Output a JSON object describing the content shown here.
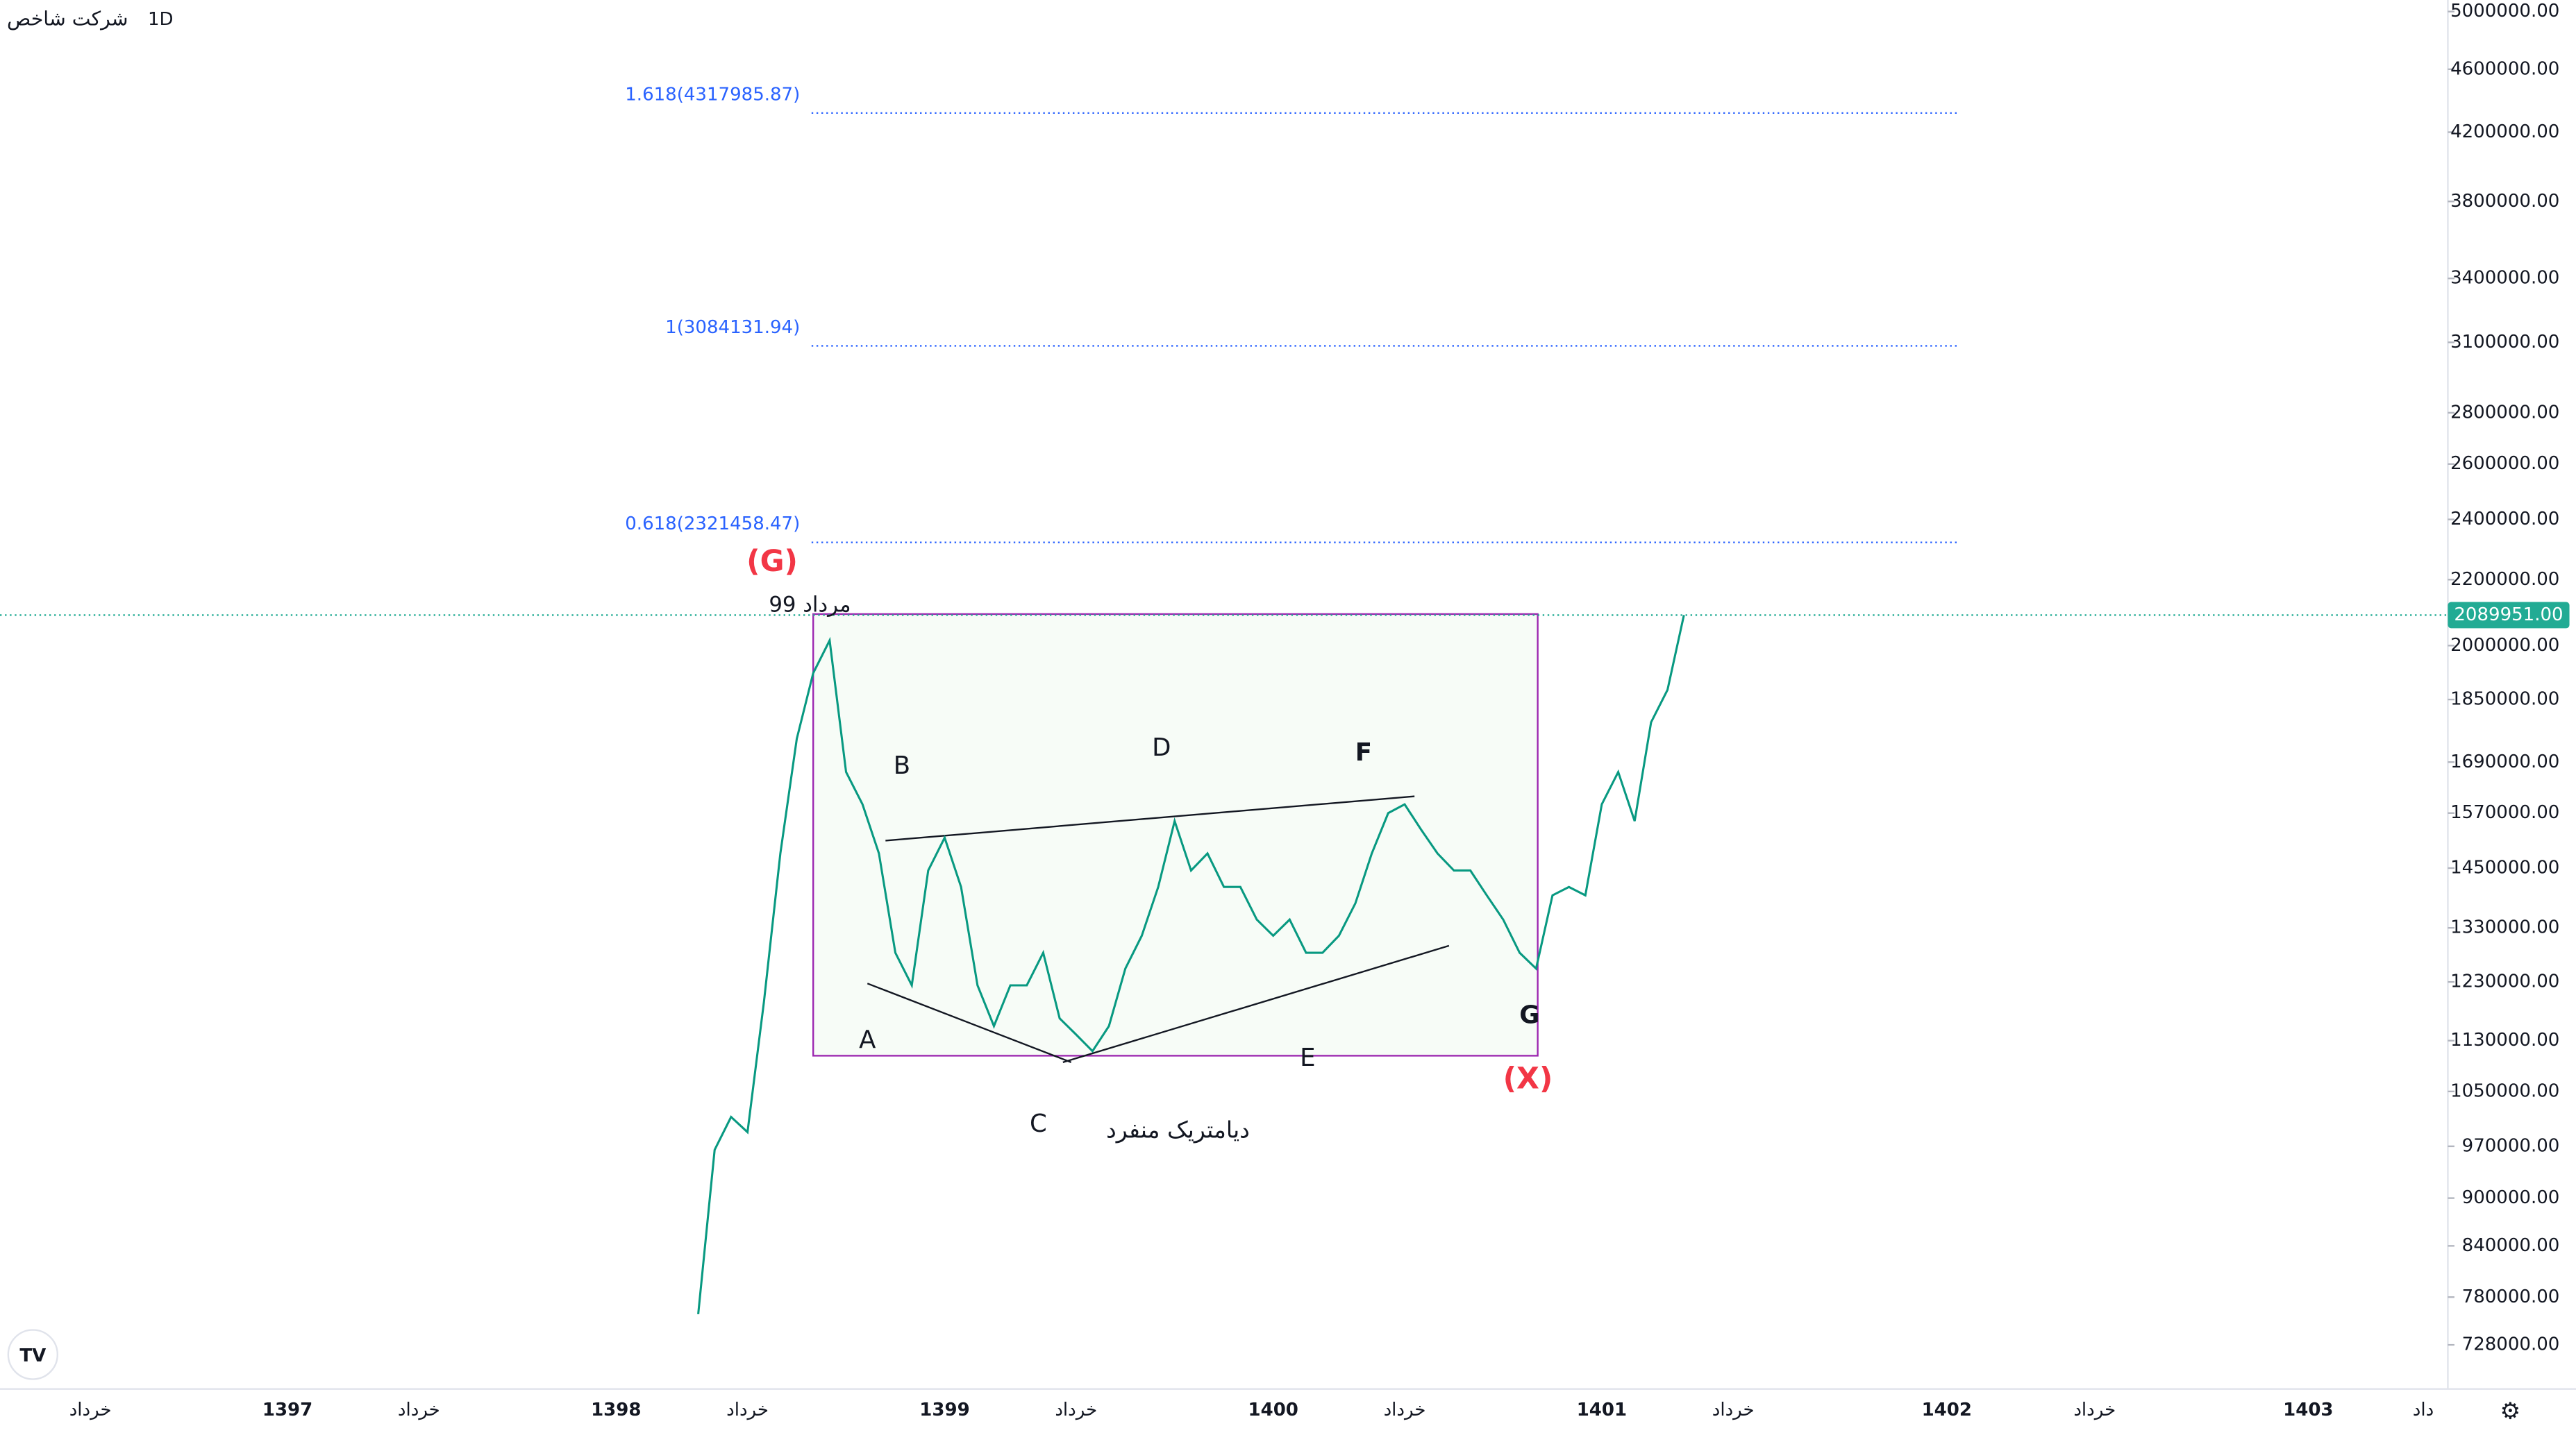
{
  "header": {
    "title": "شرکت شاخص",
    "interval": "1D"
  },
  "chart_data": {
    "type": "line",
    "log_scale": true,
    "color": "#089981",
    "categories": [
      null,
      null,
      null,
      null,
      null,
      "خرداد",
      null,
      null,
      null,
      null,
      null,
      null,
      null,
      null,
      null,
      null,
      null,
      "1397",
      null,
      null,
      null,
      null,
      null,
      null,
      null,
      "خرداد",
      null,
      null,
      null,
      null,
      null,
      null,
      null,
      null,
      null,
      null,
      null,
      "1398",
      null,
      null,
      null,
      null,
      null,
      null,
      null,
      "خرداد",
      null,
      null,
      null,
      null,
      null,
      null,
      null,
      null,
      null,
      null,
      null,
      "1399",
      null,
      null,
      null,
      null,
      null,
      null,
      null,
      "خرداد",
      null,
      null,
      null,
      null,
      null,
      null,
      null,
      null,
      null,
      null,
      null,
      "1400",
      null,
      null,
      null,
      null,
      null,
      null,
      null,
      "خرداد",
      null,
      null,
      null,
      null,
      null,
      null,
      null,
      null,
      null,
      null,
      null,
      "1401",
      null,
      null,
      null,
      null,
      null,
      null,
      null,
      "خرداد",
      null,
      null,
      null,
      null,
      null,
      null,
      null,
      null,
      null,
      null,
      null,
      null,
      "1402",
      null,
      null,
      null,
      null,
      null,
      null,
      null,
      null,
      "خرداد",
      null,
      null,
      null,
      null,
      null,
      null,
      null,
      null,
      null,
      null,
      null,
      null,
      "1403",
      null,
      null,
      null,
      null,
      null,
      null,
      "داد",
      null
    ],
    "values": [
      null,
      null,
      null,
      null,
      null,
      null,
      null,
      null,
      null,
      null,
      null,
      null,
      null,
      null,
      null,
      null,
      null,
      null,
      null,
      null,
      null,
      null,
      null,
      null,
      null,
      null,
      null,
      null,
      null,
      null,
      null,
      null,
      null,
      null,
      null,
      null,
      null,
      null,
      null,
      null,
      null,
      null,
      761000,
      965000,
      1012000,
      990000,
      1195000,
      1481000,
      1748000,
      1922000,
      2015000,
      1666000,
      1590000,
      1481000,
      1283000,
      1224000,
      1445000,
      1515000,
      1411000,
      1224000,
      1154000,
      1224000,
      1224000,
      1283000,
      1167000,
      1140000,
      1113000,
      1154000,
      1254000,
      1315000,
      1411000,
      1552000,
      1445000,
      1481000,
      1411000,
      1411000,
      1346000,
      1315000,
      1346000,
      1283000,
      1283000,
      1315000,
      1378000,
      1481000,
      1570000,
      1590000,
      1533000,
      1481000,
      1445000,
      1445000,
      1394000,
      1346000,
      1283000,
      1254000,
      1394000,
      1411000,
      1394000,
      1590000,
      1666000,
      1552000,
      1790000,
      1876000,
      2089951,
      null,
      null,
      null,
      null,
      null,
      null,
      null,
      null,
      null,
      null,
      null,
      null,
      null,
      null,
      null,
      null,
      null,
      null,
      null,
      null,
      null,
      null,
      null,
      null,
      null,
      null,
      null,
      null,
      null,
      null,
      null,
      null,
      null,
      null,
      null,
      null,
      null,
      null,
      null,
      null,
      null,
      null,
      null,
      null,
      null,
      null
    ],
    "ylim": [
      683000,
      5084000
    ],
    "yticks": [
      {
        "value": 5000000,
        "label": "5000000.00"
      },
      {
        "value": 4600000,
        "label": "4600000.00"
      },
      {
        "value": 4200000,
        "label": "4200000.00"
      },
      {
        "value": 3800000,
        "label": "3800000.00"
      },
      {
        "value": 3400000,
        "label": "3400000.00"
      },
      {
        "value": 3100000,
        "label": "3100000.00"
      },
      {
        "value": 2800000,
        "label": "2800000.00"
      },
      {
        "value": 2600000,
        "label": "2600000.00"
      },
      {
        "value": 2400000,
        "label": "2400000.00"
      },
      {
        "value": 2200000,
        "label": "2200000.00"
      },
      {
        "value": 2000000,
        "label": "2000000.00"
      },
      {
        "value": 1850000,
        "label": "1850000.00"
      },
      {
        "value": 1690000,
        "label": "1690000.00"
      },
      {
        "value": 1570000,
        "label": "1570000.00"
      },
      {
        "value": 1450000,
        "label": "1450000.00"
      },
      {
        "value": 1330000,
        "label": "1330000.00"
      },
      {
        "value": 1230000,
        "label": "1230000.00"
      },
      {
        "value": 1130000,
        "label": "1130000.00"
      },
      {
        "value": 1050000,
        "label": "1050000.00"
      },
      {
        "value": 970000,
        "label": "970000.00"
      },
      {
        "value": 900000,
        "label": "900000.00"
      },
      {
        "value": 840000,
        "label": "840000.00"
      },
      {
        "value": 780000,
        "label": "780000.00"
      },
      {
        "value": 728000,
        "label": "728000.00"
      }
    ],
    "last_price": {
      "value": 2089951,
      "label": "2089951.00"
    },
    "fib_levels": [
      {
        "value": 4317985.87,
        "label": "1.618(4317985.87)"
      },
      {
        "value": 3084131.94,
        "label": "1(3084131.94)"
      },
      {
        "value": 2321458.47,
        "label": "0.618(2321458.47)"
      }
    ],
    "annotations": [
      "(G)",
      "مرداد 99",
      "B",
      "D",
      "F",
      "A",
      "C",
      "E",
      "G",
      "(X)",
      "دیامتریک منفرد"
    ]
  }
}
